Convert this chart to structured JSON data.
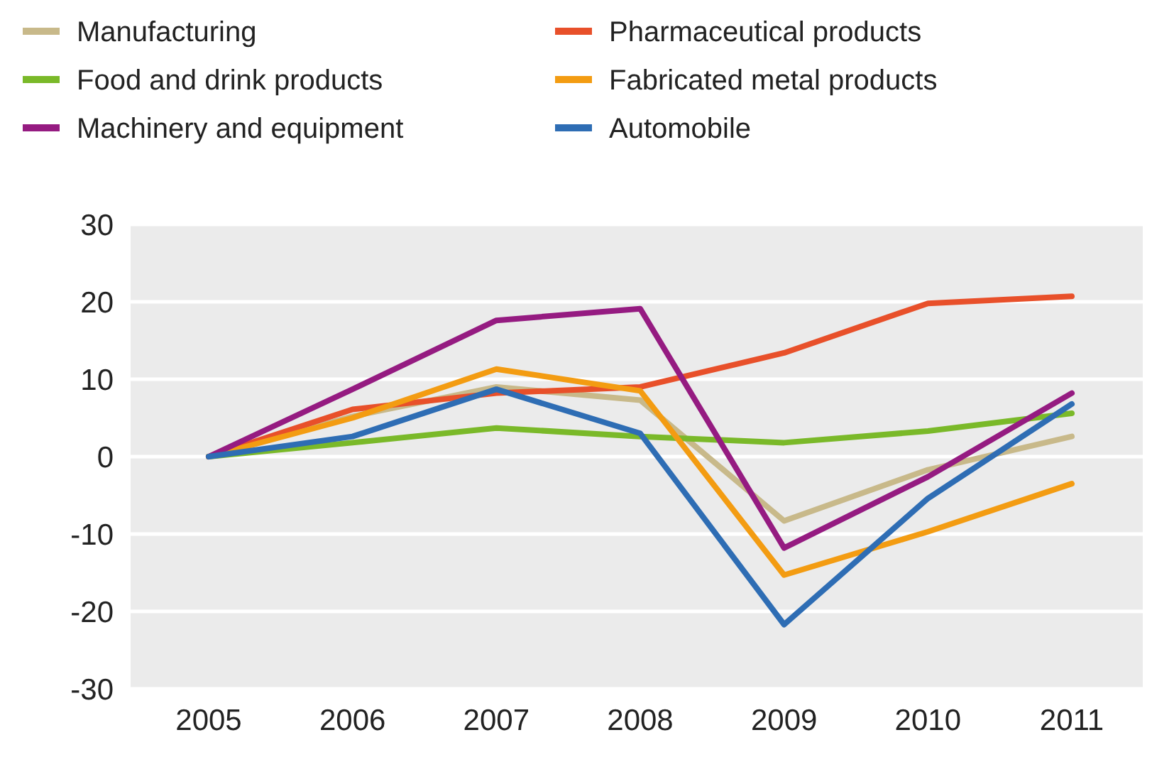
{
  "chart_data": {
    "type": "line",
    "categories": [
      "2005",
      "2006",
      "2007",
      "2008",
      "2009",
      "2010",
      "2011"
    ],
    "series": [
      {
        "name": "Manufacturing",
        "color": "#c8b98a",
        "values": [
          0,
          5.2,
          9,
          7.3,
          -8.3,
          -1.7,
          2.6
        ]
      },
      {
        "name": "Pharmaceutical products",
        "color": "#e8502a",
        "values": [
          0,
          6.1,
          8.2,
          9,
          13.4,
          19.8,
          20.7
        ]
      },
      {
        "name": "Food and drink products",
        "color": "#7ab929",
        "values": [
          0,
          1.8,
          3.7,
          2.6,
          1.8,
          3.3,
          5.6
        ]
      },
      {
        "name": "Fabricated metal products",
        "color": "#f39c12",
        "values": [
          0,
          5,
          11.3,
          8.5,
          -15.3,
          -9.7,
          -3.5
        ]
      },
      {
        "name": "Machinery and equipment",
        "color": "#951b81",
        "values": [
          0,
          8.7,
          17.6,
          19.1,
          -11.8,
          -2.6,
          8.2
        ]
      },
      {
        "name": "Automobile",
        "color": "#2e6db4",
        "values": [
          0,
          2.6,
          8.7,
          3,
          -21.7,
          -5.4,
          6.8
        ]
      }
    ],
    "ylim": [
      -30,
      30
    ],
    "yticks": [
      -30,
      -20,
      -10,
      0,
      10,
      20,
      30
    ],
    "grid": "y",
    "legend": "top left",
    "marker": "none",
    "line_style": "solid"
  }
}
